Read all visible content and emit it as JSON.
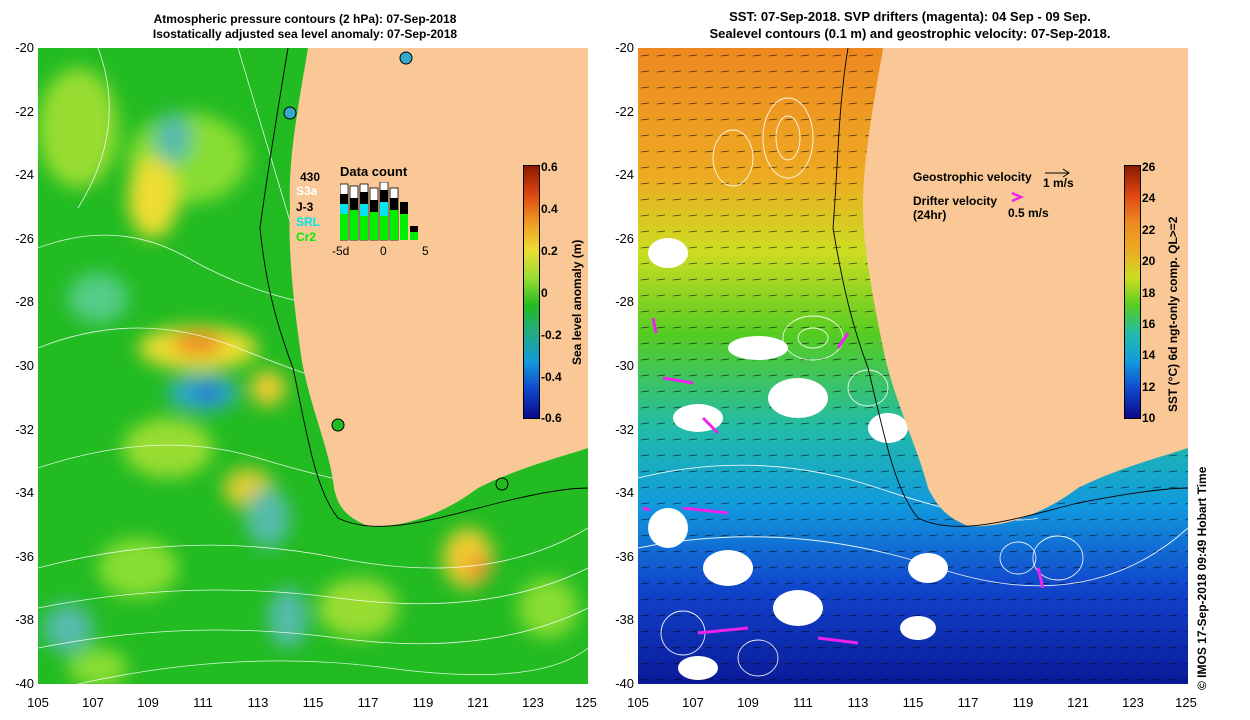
{
  "left_panel": {
    "title_line1": "Atmospheric pressure contours (2 hPa): 07-Sep-2018",
    "title_line2": "Isostatically adjusted sea level anomaly: 07-Sep-2018",
    "colorbar": {
      "label": "Sea level anomaly (m)",
      "ticks": [
        "0.6",
        "0.4",
        "0.2",
        "0",
        "-0.2",
        "-0.4",
        "-0.6"
      ]
    },
    "data_count": {
      "title": "Data count",
      "legend": [
        "430",
        "S3a",
        "J-3",
        "SRL",
        "Cr2"
      ],
      "legend_colors": [
        "#000000",
        "#ffffff",
        "#000000",
        "#00e5ee",
        "#00ee00"
      ],
      "x_ticks": [
        "-5d",
        "0",
        "5"
      ]
    }
  },
  "right_panel": {
    "title_line1": "SST: 07-Sep-2018. SVP drifters (magenta): 04 Sep - 09 Sep.",
    "title_line2": "Sealevel contours (0.1 m) and geostrophic velocity: 07-Sep-2018.",
    "geostrophic_label": "Geostrophic velocity",
    "geostrophic_scale": "1 m/s",
    "drifter_label_1": "Drifter velocity",
    "drifter_label_2": "(24hr)",
    "drifter_scale": "0.5 m/s",
    "colorbar": {
      "label": "SST (°C) 6d ngt-only comp. QL>=2",
      "ticks": [
        "26",
        "24",
        "22",
        "20",
        "18",
        "16",
        "14",
        "12",
        "10"
      ]
    }
  },
  "axes": {
    "y_ticks": [
      "-20",
      "-22",
      "-24",
      "-26",
      "-28",
      "-30",
      "-32",
      "-34",
      "-36",
      "-38",
      "-40"
    ],
    "x_ticks": [
      "105",
      "107",
      "109",
      "111",
      "113",
      "115",
      "117",
      "119",
      "121",
      "123",
      "125"
    ]
  },
  "credit": "© IMOS 17-Sep-2018 09:49 Hobart Time"
}
